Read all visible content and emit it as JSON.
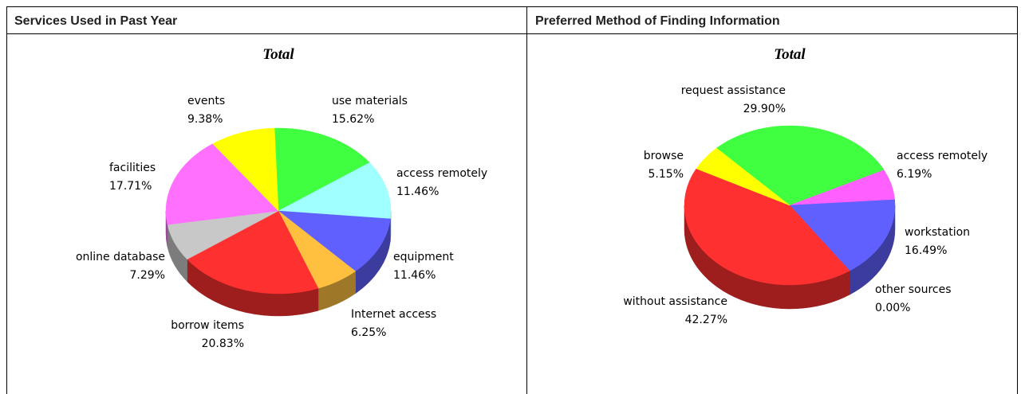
{
  "table": {
    "headers": [
      "Services Used in Past Year",
      "Preferred Method of Finding Information"
    ]
  },
  "chart_data": [
    {
      "type": "pie",
      "title": "Total",
      "categories": [
        "use materials",
        "access remotely",
        "equipment",
        "Internet access",
        "borrow items",
        "online database",
        "facilities",
        "events"
      ],
      "values": [
        15.62,
        11.46,
        11.46,
        6.25,
        20.83,
        7.29,
        17.71,
        9.38
      ],
      "value_labels": [
        "15.62%",
        "11.46%",
        "11.46%",
        "6.25%",
        "20.83%",
        "7.29%",
        "17.71%",
        "9.38%"
      ],
      "colors": [
        "#40ff40",
        "#a0ffff",
        "#6060ff",
        "#ffc040",
        "#ff3030",
        "#c8c8c8",
        "#ff70ff",
        "#ffff00"
      ]
    },
    {
      "type": "pie",
      "title": "Total",
      "categories": [
        "request assistance",
        "access remotely",
        "workstation",
        "other sources",
        "without assistance",
        "browse"
      ],
      "values": [
        29.9,
        6.19,
        16.49,
        0.0,
        42.27,
        5.15
      ],
      "value_labels": [
        "29.90%",
        "6.19%",
        "16.49%",
        "0.00%",
        "42.27%",
        "5.15%"
      ],
      "colors": [
        "#40ff40",
        "#ff60ff",
        "#6060ff",
        "#00c0c0",
        "#ff3030",
        "#ffff00"
      ]
    }
  ]
}
